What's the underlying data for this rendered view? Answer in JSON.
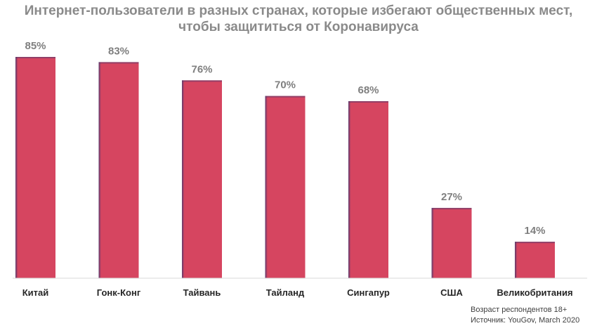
{
  "chart_data": {
    "type": "bar",
    "title_lines": [
      "Интернет-пользователи в разных странах, которые избегают общественных мест,",
      "чтобы защититься от Коронавируса"
    ],
    "categories": [
      "Китай",
      "Гонк-Конг",
      "Тайвань",
      "Тайланд",
      "Сингапур",
      "США",
      "Великобритания"
    ],
    "values": [
      85,
      83,
      76,
      70,
      68,
      27,
      14
    ],
    "data_labels": [
      "85%",
      "83%",
      "76%",
      "70%",
      "68%",
      "27%",
      "14%"
    ],
    "unit": "%",
    "ylim": [
      0,
      85
    ],
    "grid": false,
    "legend": "none",
    "bar_color": "#d64560",
    "bar_shade_color": "#5a3a6e",
    "label_color": "#7f7f7f",
    "category_color": "#262626"
  },
  "footnote": {
    "line1": "Возраст респондентов 18+",
    "line2": "Источник: YouGov, March 2020"
  }
}
